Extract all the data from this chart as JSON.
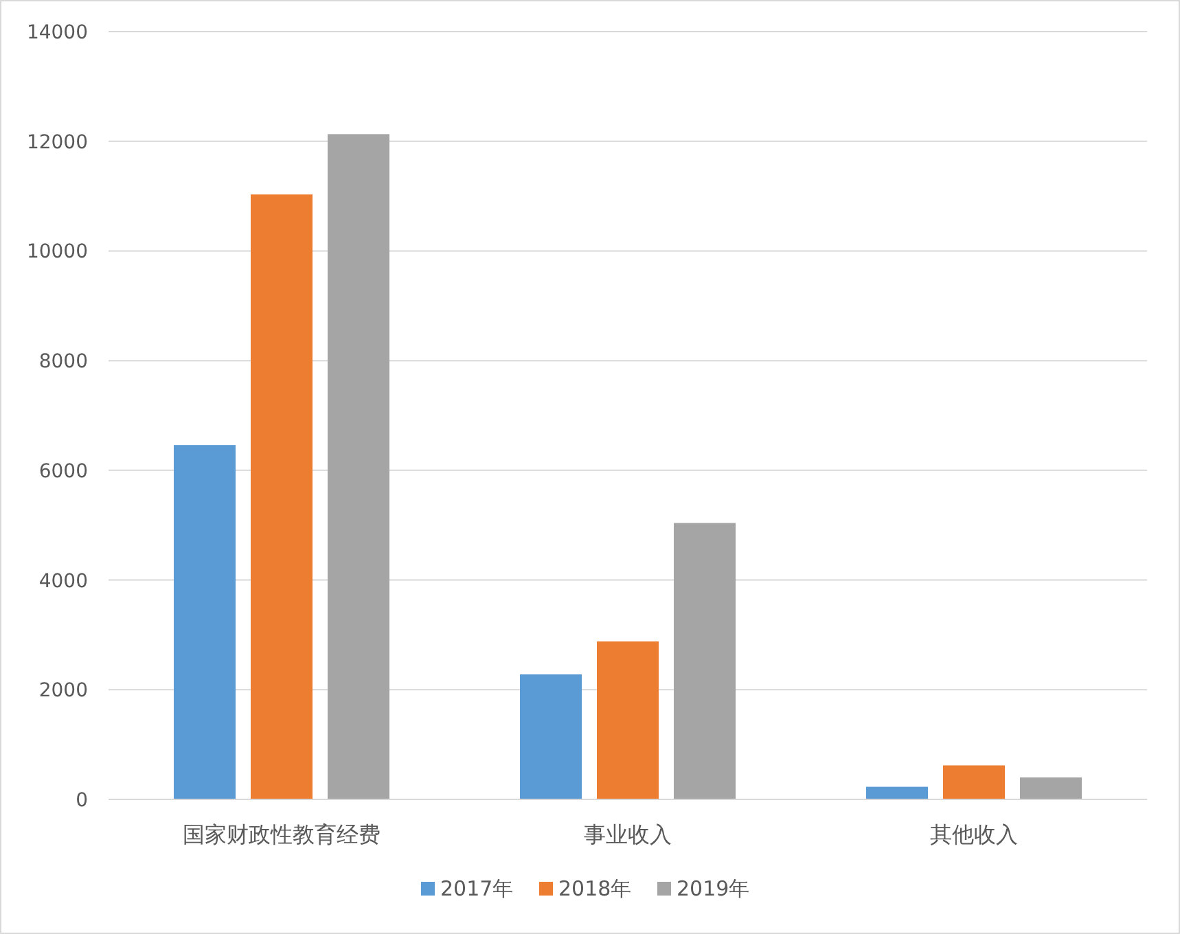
{
  "chart_data": {
    "type": "bar",
    "categories": [
      "国家财政性教育经费",
      "事业收入",
      "其他收入"
    ],
    "series": [
      {
        "name": "2017年",
        "color": "#5b9bd5",
        "values": [
          6460,
          2280,
          230
        ]
      },
      {
        "name": "2018年",
        "color": "#ed7d31",
        "values": [
          11030,
          2880,
          620
        ]
      },
      {
        "name": "2019年",
        "color": "#a5a5a5",
        "values": [
          12130,
          5040,
          400
        ]
      }
    ],
    "ylim": [
      0,
      14000
    ],
    "yticks": [
      0,
      2000,
      4000,
      6000,
      8000,
      10000,
      12000,
      14000
    ],
    "grid": "y",
    "legend": "bottom"
  }
}
